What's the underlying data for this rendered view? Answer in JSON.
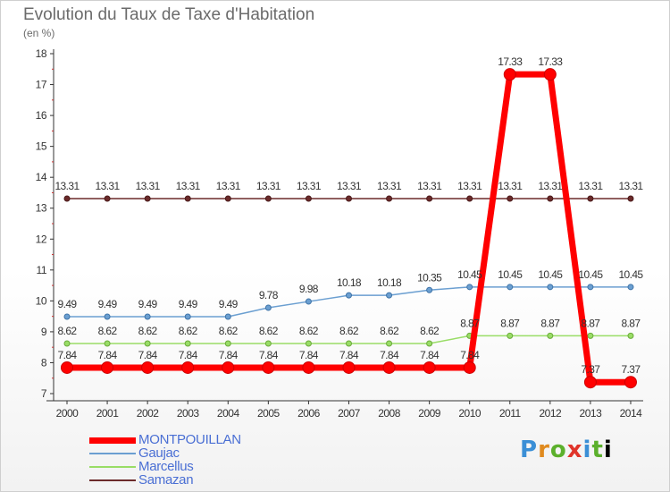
{
  "header": {
    "title": "Evolution du Taux de Taxe d'Habitation",
    "unit": "(en %)"
  },
  "logo_text": "Proxiti",
  "colors": {
    "MONTPOUILLAN": "#ff0000",
    "Gaujac": "#6b9fd1",
    "Marcellus": "#99dd66",
    "Samazan": "#6b2a2a",
    "axis": "#333333",
    "grid": "#e6e6e6"
  },
  "chart_data": {
    "type": "line",
    "title": "Evolution du Taux de Taxe d'Habitation",
    "ylabel": "(en %)",
    "xlabel": "",
    "ylim": [
      7,
      18
    ],
    "yticks": [
      7,
      8,
      9,
      10,
      11,
      12,
      13,
      14,
      15,
      16,
      17,
      18
    ],
    "x": [
      "2000",
      "2001",
      "2002",
      "2003",
      "2004",
      "2005",
      "2006",
      "2007",
      "2008",
      "2009",
      "2010",
      "2011",
      "2012",
      "2013",
      "2014"
    ],
    "grid": false,
    "legend_position": "bottom-left",
    "series": [
      {
        "name": "MONTPOUILLAN",
        "values": [
          7.84,
          7.84,
          7.84,
          7.84,
          7.84,
          7.84,
          7.84,
          7.84,
          7.84,
          7.84,
          7.84,
          17.33,
          17.33,
          7.37,
          7.37
        ],
        "labels": [
          "7.84",
          "7.84",
          "7.84",
          "7.84",
          "7.84",
          "7.84",
          "7.84",
          "7.84",
          "7.84",
          "7.84",
          "7.84",
          "17.33",
          "17.33",
          "7.37",
          "7.37"
        ]
      },
      {
        "name": "Gaujac",
        "values": [
          9.49,
          9.49,
          9.49,
          9.49,
          9.49,
          9.78,
          9.98,
          10.18,
          10.18,
          10.35,
          10.45,
          10.45,
          10.45,
          10.45,
          10.45
        ],
        "labels": [
          "9.49",
          "9.49",
          "9.49",
          "9.49",
          "9.49",
          "9.78",
          "9.98",
          "10.18",
          "10.18",
          "10.35",
          "10.45",
          "10.45",
          "10.45",
          "10.45",
          "10.45"
        ]
      },
      {
        "name": "Marcellus",
        "values": [
          8.62,
          8.62,
          8.62,
          8.62,
          8.62,
          8.62,
          8.62,
          8.62,
          8.62,
          8.62,
          8.87,
          8.87,
          8.87,
          8.87,
          8.87
        ],
        "labels": [
          "8.62",
          "8.62",
          "8.62",
          "8.62",
          "8.62",
          "8.62",
          "8.62",
          "8.62",
          "8.62",
          "8.62",
          "8.87",
          "8.87",
          "8.87",
          "8.87",
          "8.87"
        ]
      },
      {
        "name": "Samazan",
        "values": [
          13.31,
          13.31,
          13.31,
          13.31,
          13.31,
          13.31,
          13.31,
          13.31,
          13.31,
          13.31,
          13.31,
          13.31,
          13.31,
          13.31,
          13.31
        ],
        "labels": [
          "13.31",
          "13.31",
          "13.31",
          "13.31",
          "13.31",
          "13.31",
          "13.31",
          "13.31",
          "13.31",
          "13.31",
          "13.31",
          "13.31",
          "13.31",
          "13.31",
          "13.31"
        ]
      }
    ]
  }
}
